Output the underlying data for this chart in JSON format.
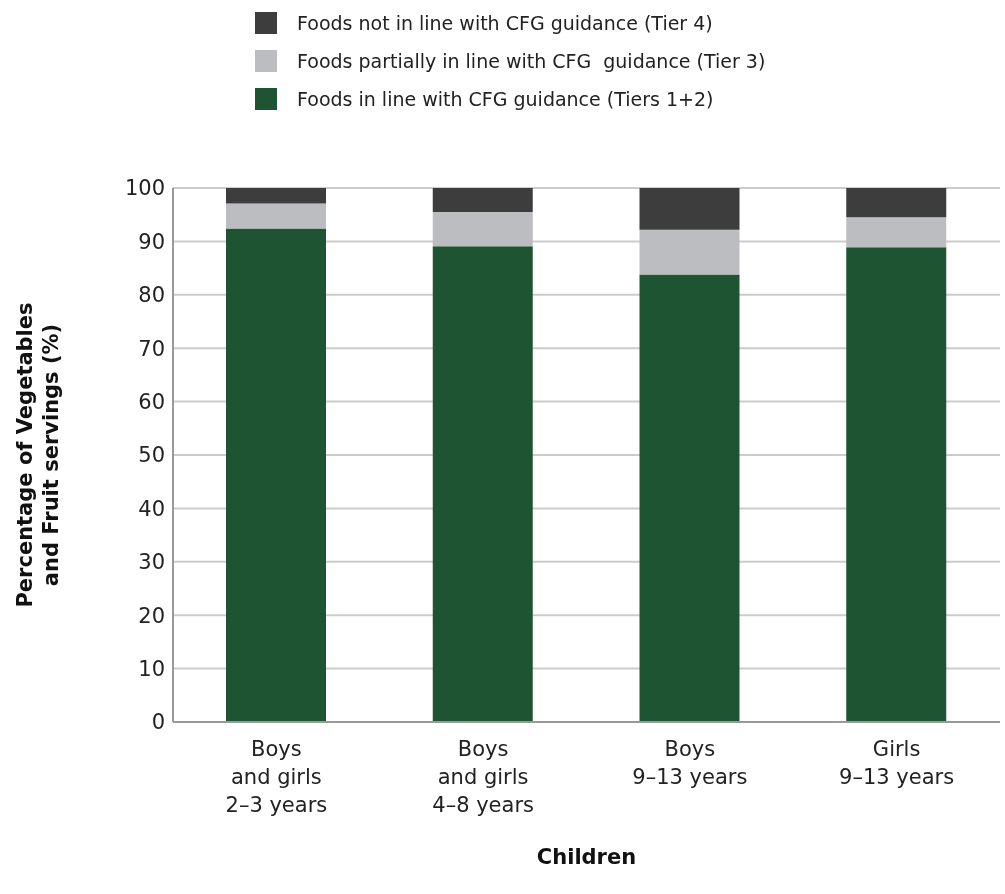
{
  "chart_data": {
    "type": "bar",
    "stacked": true,
    "xlabel": "Children",
    "ylabel": "Percentage of Vegetables\nand Fruit servings (%)",
    "categories": [
      "Boys\nand girls\n2–3 years",
      "Boys\nand girls\n4–8 years",
      "Boys\n9–13 years",
      "Girls\n9–13 years"
    ],
    "series": [
      {
        "name": "Foods in line with CFG guidance (Tiers 1+2)",
        "color": "#1f5432",
        "values": [
          92.4,
          89.1,
          83.8,
          88.9
        ]
      },
      {
        "name": "Foods partially in line with CFG  guidance (Tier 3)",
        "color": "#bcbdc0",
        "values": [
          4.7,
          6.4,
          8.4,
          5.6
        ]
      },
      {
        "name": "Foods not in line with CFG guidance (Tier 4)",
        "color": "#3d3d3d",
        "values": [
          2.9,
          4.5,
          7.8,
          5.5
        ]
      }
    ],
    "ylim": [
      0,
      100
    ],
    "yticks": [
      0,
      10,
      20,
      30,
      40,
      50,
      60,
      70,
      80,
      90,
      100
    ],
    "grid": "y",
    "legend": "top"
  }
}
